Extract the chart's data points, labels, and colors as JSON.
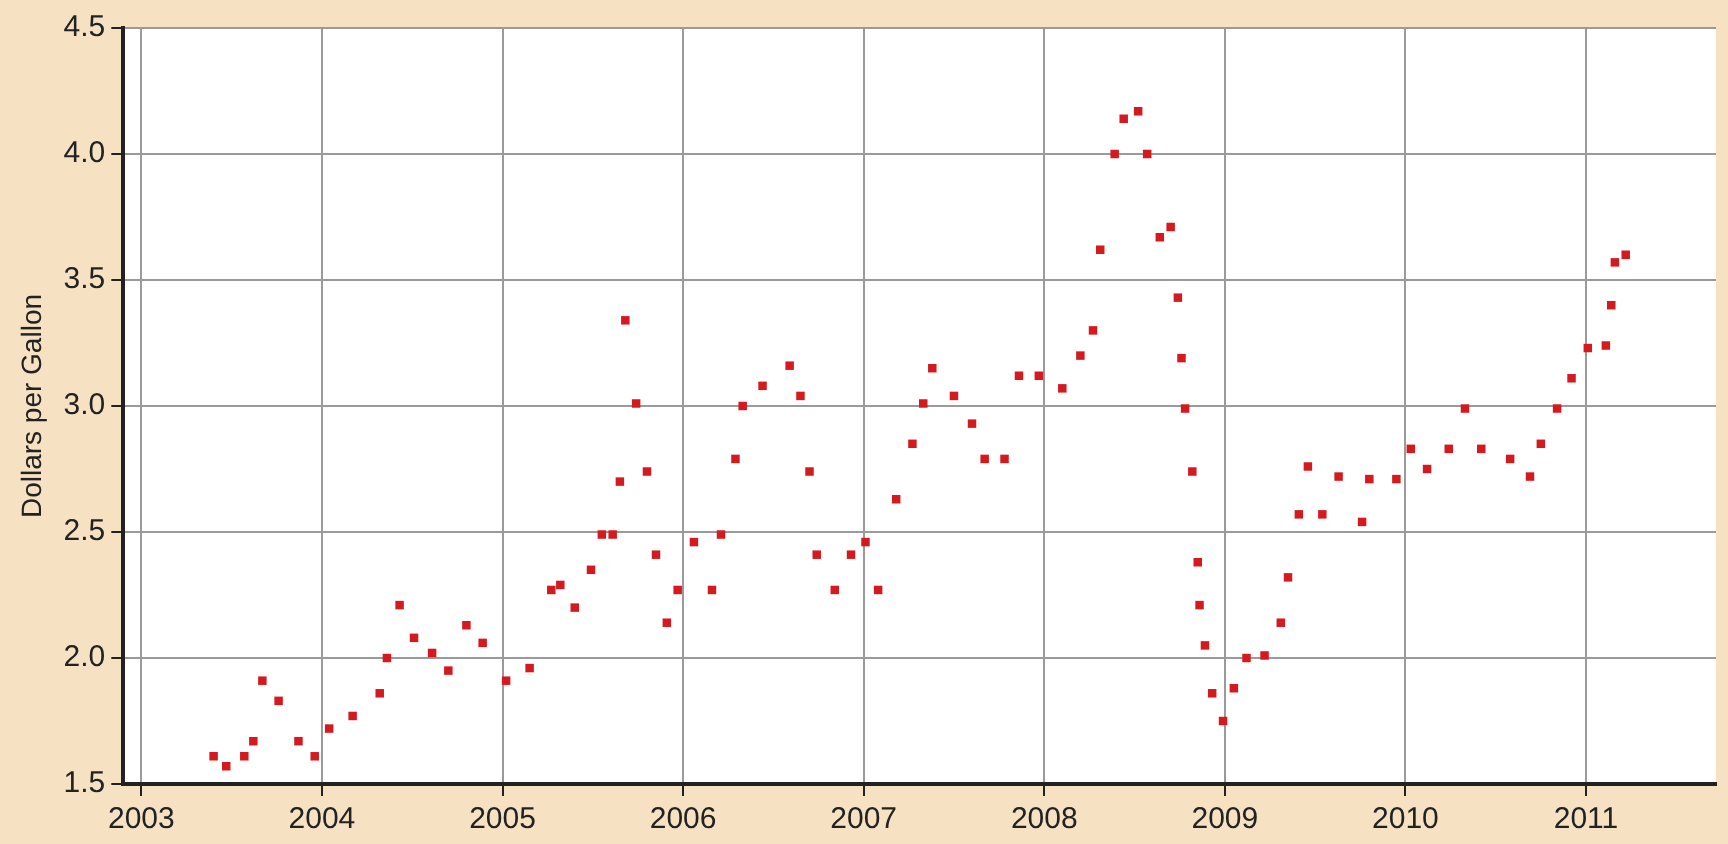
{
  "chart_data": {
    "type": "scatter",
    "ylabel": "Dollars per Gallon",
    "marker": "square",
    "grid": true,
    "legend": false,
    "xlim": [
      2002.9,
      2011.72
    ],
    "xticks": [
      2003,
      2004,
      2005,
      2006,
      2007,
      2008,
      2009,
      2010,
      2011
    ],
    "ylim": [
      1.5,
      4.5
    ],
    "yticks": [
      {
        "value": 1.5,
        "label": "1.5"
      },
      {
        "value": 2,
        "label": "2.0"
      },
      {
        "value": 2.5,
        "label": "2.5"
      },
      {
        "value": 3,
        "label": "3.0"
      },
      {
        "value": 3.5,
        "label": "3.5"
      },
      {
        "value": 4,
        "label": "4.0"
      },
      {
        "value": 4.5,
        "label": "4.5"
      }
    ],
    "series": [
      {
        "color": "#d41a1f",
        "x": [
          2003.4,
          2003.47,
          2003.57,
          2003.62,
          2003.67,
          2003.76,
          2003.87,
          2003.96,
          2004.04,
          2004.17,
          2004.32,
          2004.36,
          2004.43,
          2004.51,
          2004.61,
          2004.7,
          2004.8,
          2004.89,
          2005.02,
          2005.15,
          2005.27,
          2005.32,
          2005.4,
          2005.49,
          2005.55,
          2005.61,
          2005.65,
          2005.68,
          2005.74,
          2005.8,
          2005.85,
          2005.91,
          2005.97,
          2006.06,
          2006.16,
          2006.21,
          2006.29,
          2006.33,
          2006.44,
          2006.59,
          2006.65,
          2006.7,
          2006.74,
          2006.84,
          2006.93,
          2007.01,
          2007.08,
          2007.18,
          2007.27,
          2007.33,
          2007.38,
          2007.5,
          2007.6,
          2007.67,
          2007.78,
          2007.86,
          2007.97,
          2008.1,
          2008.2,
          2008.27,
          2008.31,
          2008.39,
          2008.44,
          2008.52,
          2008.57,
          2008.64,
          2008.7,
          2008.74,
          2008.76,
          2008.78,
          2008.82,
          2008.85,
          2008.86,
          2008.89,
          2008.93,
          2008.99,
          2009.05,
          2009.12,
          2009.22,
          2009.31,
          2009.35,
          2009.41,
          2009.46,
          2009.54,
          2009.63,
          2009.76,
          2009.8,
          2009.95,
          2010.03,
          2010.12,
          2010.24,
          2010.33,
          2010.42,
          2010.58,
          2010.69,
          2010.75,
          2010.84,
          2010.92,
          2011.01,
          2011.11,
          2011.14,
          2011.16,
          2011.22
        ],
        "values": [
          1.61,
          1.57,
          1.61,
          1.67,
          1.91,
          1.83,
          1.67,
          1.61,
          1.72,
          1.77,
          1.86,
          2.0,
          2.21,
          2.08,
          2.02,
          1.95,
          2.13,
          2.06,
          1.91,
          1.96,
          2.27,
          2.29,
          2.2,
          2.35,
          2.49,
          2.49,
          2.7,
          3.34,
          3.01,
          2.74,
          2.41,
          2.14,
          2.27,
          2.46,
          2.27,
          2.49,
          2.79,
          3.0,
          3.08,
          3.16,
          3.04,
          2.74,
          2.41,
          2.27,
          2.41,
          2.46,
          2.27,
          2.63,
          2.85,
          3.01,
          3.15,
          3.04,
          2.93,
          2.79,
          2.79,
          3.12,
          3.12,
          3.07,
          3.2,
          3.3,
          3.62,
          4.0,
          4.14,
          4.17,
          4.0,
          3.67,
          3.71,
          3.43,
          3.19,
          2.99,
          2.74,
          2.38,
          2.21,
          2.05,
          1.86,
          1.75,
          1.88,
          2.0,
          2.01,
          2.14,
          2.32,
          2.57,
          2.76,
          2.57,
          2.72,
          2.54,
          2.71,
          2.71,
          2.83,
          2.75,
          2.83,
          2.99,
          2.83,
          2.79,
          2.72,
          2.85,
          2.99,
          3.11,
          3.23,
          3.24,
          3.4,
          3.57,
          3.6
        ]
      }
    ]
  }
}
